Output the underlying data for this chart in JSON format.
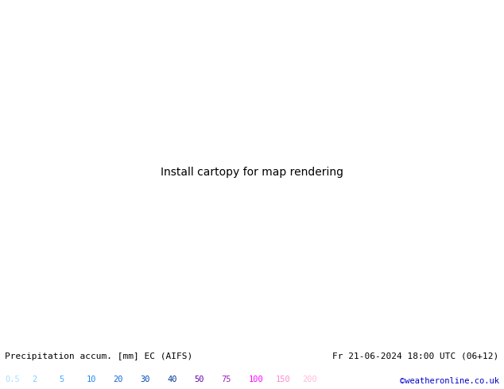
{
  "title_left": "Precipitation accum. [mm] EC (AIFS)",
  "title_right": "Fr 21-06-2024 18:00 UTC (06+12)",
  "credit": "©weatheronline.co.uk",
  "legend_values": [
    "0.5",
    "2",
    "5",
    "10",
    "20",
    "30",
    "40",
    "50",
    "75",
    "100",
    "150",
    "200"
  ],
  "legend_colors": [
    "#aaddff",
    "#77ccff",
    "#44aaff",
    "#2288ee",
    "#1166dd",
    "#0044bb",
    "#003399",
    "#6600aa",
    "#9922bb",
    "#ff00ff",
    "#ff88cc",
    "#ffbbdd"
  ],
  "bottom_bg": "#ffffff",
  "font_color": "#000000",
  "credit_color": "#0000cc",
  "map_extent": [
    -28,
    45,
    27,
    72
  ],
  "sea_color": "#daeef8",
  "land_color": "#d4e8b0",
  "land_color2": "#c8dca0",
  "gray_land": "#c8c8b8",
  "isobar_blue": "#0000cc",
  "isobar_red": "#cc0000"
}
